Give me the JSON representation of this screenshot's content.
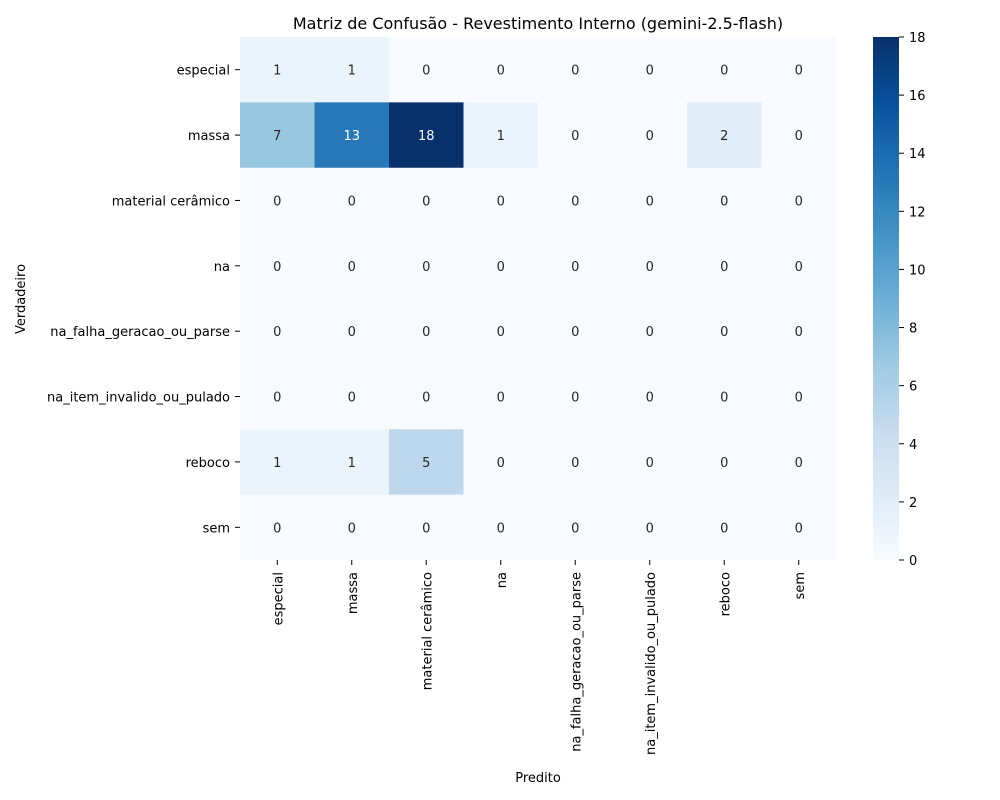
{
  "chart_data": {
    "type": "heatmap",
    "title": "Matriz de Confusão - Revestimento Interno (gemini-2.5-flash)",
    "xlabel": "Predito",
    "ylabel": "Verdadeiro",
    "x_categories": [
      "especial",
      "massa",
      "material cerâmico",
      "na",
      "na_falha_geracao_ou_parse",
      "na_item_invalido_ou_pulado",
      "reboco",
      "sem"
    ],
    "y_categories": [
      "especial",
      "massa",
      "material cerâmico",
      "na",
      "na_falha_geracao_ou_parse",
      "na_item_invalido_ou_pulado",
      "reboco",
      "sem"
    ],
    "values": [
      [
        1,
        1,
        0,
        0,
        0,
        0,
        0,
        0
      ],
      [
        7,
        13,
        18,
        1,
        0,
        0,
        2,
        0
      ],
      [
        0,
        0,
        0,
        0,
        0,
        0,
        0,
        0
      ],
      [
        0,
        0,
        0,
        0,
        0,
        0,
        0,
        0
      ],
      [
        0,
        0,
        0,
        0,
        0,
        0,
        0,
        0
      ],
      [
        0,
        0,
        0,
        0,
        0,
        0,
        0,
        0
      ],
      [
        1,
        1,
        5,
        0,
        0,
        0,
        0,
        0
      ],
      [
        0,
        0,
        0,
        0,
        0,
        0,
        0,
        0
      ]
    ],
    "colormap": "Blues",
    "colorbar": {
      "range": [
        0,
        18
      ],
      "ticks": [
        0,
        2,
        4,
        6,
        8,
        10,
        12,
        14,
        16,
        18
      ]
    }
  }
}
